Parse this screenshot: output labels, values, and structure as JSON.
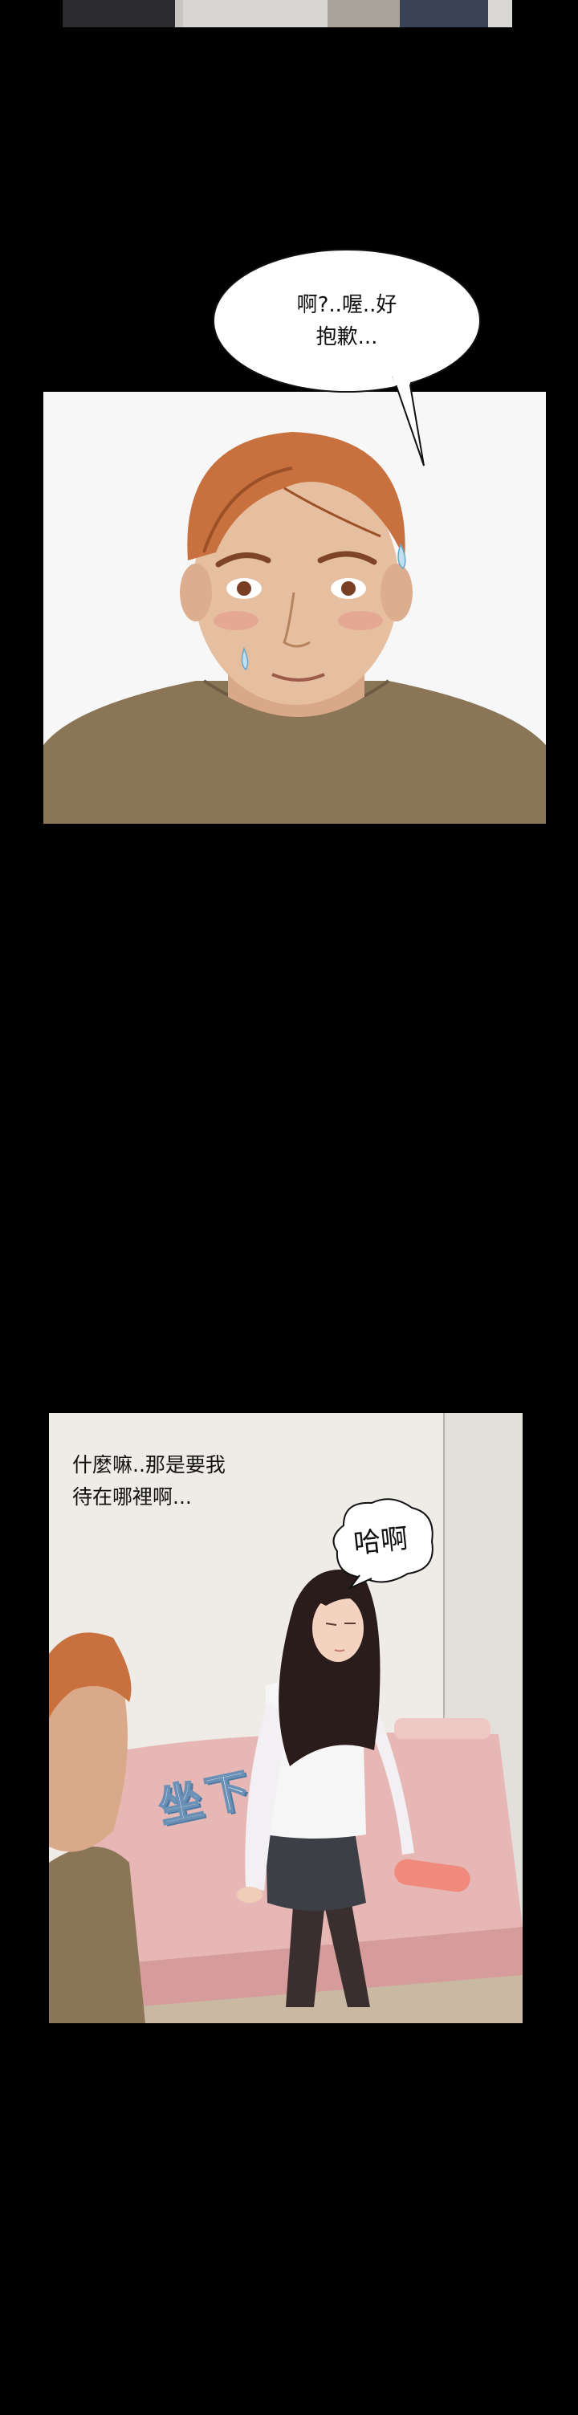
{
  "panels": {
    "bubble1": {
      "line1": "啊?..喔..好",
      "line2": "抱歉..."
    },
    "panel2": {
      "caption_line1": "什麼嘛..那是要我",
      "caption_line2": "待在哪裡啊...",
      "bubble_text": "哈啊",
      "sfx_text": "坐下"
    }
  },
  "colors": {
    "background": "#000000",
    "skin": "#e6bea0",
    "hair": "#c8713f",
    "shirt": "#8a7657",
    "bed": "#e7b7b5",
    "blouse": "#f7f6f7",
    "sfx": "#6a90b5"
  }
}
